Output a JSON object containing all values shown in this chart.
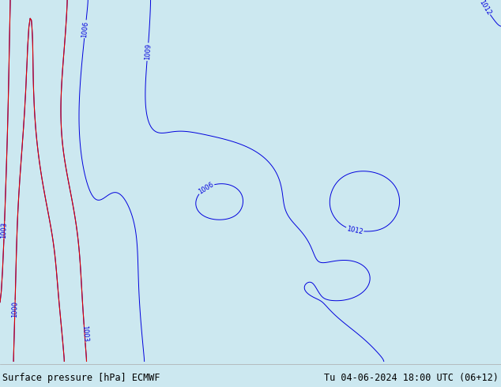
{
  "title_left": "Surface pressure [hPa] ECMWF",
  "title_right": "Tu 04-06-2024 18:00 UTC (06+12)",
  "bg_color": "#cce8f0",
  "ocean_color": "#cce8f0",
  "land_color": "#d8cfa0",
  "land_color_green": "#b8c890",
  "border_color": "#808080",
  "contour_blue": "#0000dd",
  "contour_red": "#dd0000",
  "contour_black": "#000000",
  "label_color_blue": "#0000dd",
  "label_fontsize": 6,
  "figsize": [
    6.34,
    4.9
  ],
  "dpi": 100,
  "text_color": "#000000",
  "lon_min": -125,
  "lon_max": -72,
  "lat_min": 3,
  "lat_max": 47
}
